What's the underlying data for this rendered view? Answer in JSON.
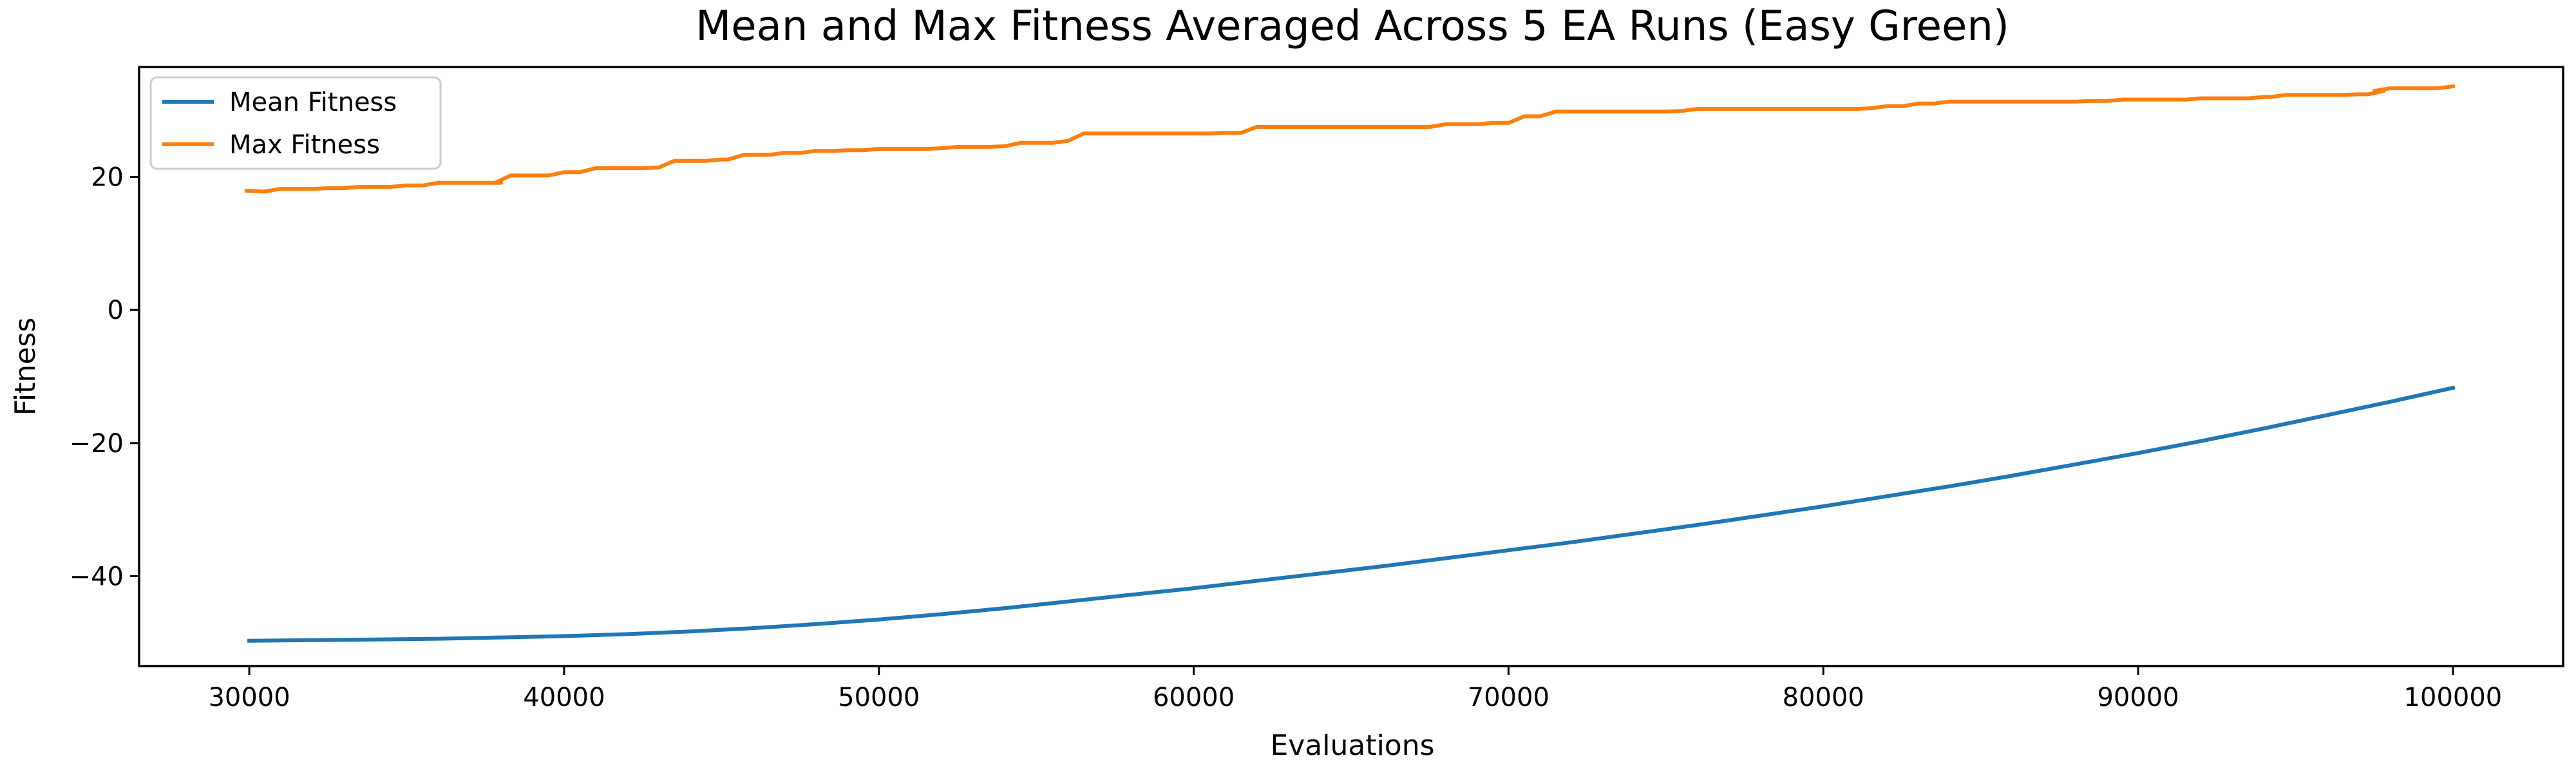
{
  "chart_data": {
    "type": "line",
    "title": "Mean and Max Fitness Averaged Across 5 EA Runs (Easy Green)",
    "xlabel": "Evaluations",
    "ylabel": "Fitness",
    "xlim": [
      26500,
      103500
    ],
    "ylim": [
      -53.5,
      36.5
    ],
    "x_ticks": [
      30000,
      40000,
      50000,
      60000,
      70000,
      80000,
      90000,
      100000
    ],
    "y_ticks": [
      -40,
      -20,
      0,
      20
    ],
    "x_tick_labels": [
      "30000",
      "40000",
      "50000",
      "60000",
      "70000",
      "80000",
      "90000",
      "100000"
    ],
    "y_tick_labels": [
      "−40",
      "−20",
      "0",
      "20"
    ],
    "grid": false,
    "legend_position": "top-left",
    "series": [
      {
        "name": "Mean Fitness",
        "color": "#1f77b4",
        "style": "smooth",
        "x": [
          30000,
          32000,
          34000,
          36000,
          38000,
          40000,
          42000,
          44000,
          46000,
          48000,
          50000,
          52000,
          54000,
          56000,
          58000,
          60000,
          62000,
          64000,
          66000,
          68000,
          70000,
          72000,
          74000,
          76000,
          78000,
          80000,
          82000,
          84000,
          86000,
          88000,
          90000,
          92000,
          94000,
          96000,
          98000,
          100000
        ],
        "y": [
          -49.7,
          -49.6,
          -49.5,
          -49.4,
          -49.2,
          -49.0,
          -48.7,
          -48.3,
          -47.8,
          -47.2,
          -46.5,
          -45.7,
          -44.8,
          -43.8,
          -42.8,
          -41.8,
          -40.7,
          -39.6,
          -38.5,
          -37.3,
          -36.1,
          -34.9,
          -33.6,
          -32.3,
          -30.9,
          -29.5,
          -28.0,
          -26.5,
          -24.9,
          -23.2,
          -21.5,
          -19.7,
          -17.8,
          -15.8,
          -13.8,
          -11.7
        ]
      },
      {
        "name": "Max Fitness",
        "color": "#ff7f0e",
        "style": "steps",
        "x": [
          30000,
          30400,
          31000,
          32500,
          33500,
          35000,
          36000,
          38000,
          38300,
          40000,
          41000,
          43000,
          43500,
          45000,
          45700,
          47000,
          48000,
          49000,
          50000,
          52000,
          52500,
          54000,
          54500,
          56000,
          56500,
          61000,
          62000,
          67000,
          68000,
          69500,
          70500,
          71500,
          75500,
          76000,
          81500,
          82000,
          83000,
          84000,
          88500,
          89500,
          92000,
          94000,
          94700,
          97000,
          97800,
          98000,
          100000
        ],
        "y": [
          17.9,
          17.8,
          18.2,
          18.3,
          18.5,
          18.7,
          19.1,
          19.1,
          20.2,
          20.7,
          21.3,
          21.4,
          22.4,
          22.6,
          23.3,
          23.6,
          23.9,
          24.0,
          24.2,
          24.3,
          24.5,
          24.6,
          25.1,
          25.4,
          26.5,
          26.6,
          27.5,
          27.5,
          27.9,
          28.1,
          29.1,
          29.8,
          29.9,
          30.2,
          30.3,
          30.6,
          31.0,
          31.3,
          31.4,
          31.6,
          31.8,
          32.0,
          32.3,
          32.4,
          32.9,
          33.3,
          33.6
        ]
      }
    ]
  }
}
